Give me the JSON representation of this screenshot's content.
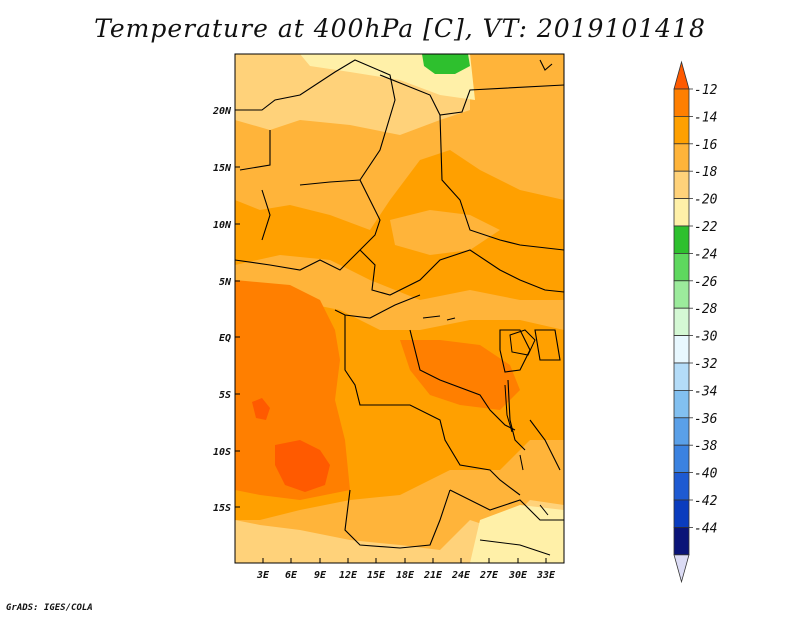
{
  "title": "Temperature at 400hPa [C], VT: 2019101418",
  "credit": "GrADS: IGES/COLA",
  "map": {
    "lat_ticks": [
      "20N",
      "15N",
      "10N",
      "5N",
      "EQ",
      "5S",
      "10S",
      "15S"
    ],
    "lon_ticks": [
      "3E",
      "6E",
      "9E",
      "12E",
      "15E",
      "18E",
      "21E",
      "24E",
      "27E",
      "30E",
      "33E"
    ]
  },
  "colorbar": {
    "labels": [
      "-12",
      "-14",
      "-16",
      "-18",
      "-20",
      "-22",
      "-24",
      "-26",
      "-28",
      "-30",
      "-32",
      "-34",
      "-36",
      "-38",
      "-40",
      "-42",
      "-44"
    ],
    "colors": [
      "#ff5a00",
      "#ff7f00",
      "#ffa000",
      "#ffb43a",
      "#ffd27a",
      "#fff0a8",
      "#2ec02e",
      "#5ed85e",
      "#9ceb9c",
      "#d4f8d4",
      "#e8f8ff",
      "#b4dcf8",
      "#82c0f0",
      "#5aa0e8",
      "#3b82e0",
      "#1e5ad2",
      "#0a3cbe",
      "#0a1478",
      "#dcdcf5"
    ]
  },
  "colors": {
    "land_base": "#ffb43a",
    "warm": "#ffa000",
    "warmer": "#ff7f00",
    "hottest": "#ff5a00",
    "cool": "#ffd27a",
    "coolest": "#fff0a8",
    "green": "#2ec02e",
    "border": "#000000"
  }
}
